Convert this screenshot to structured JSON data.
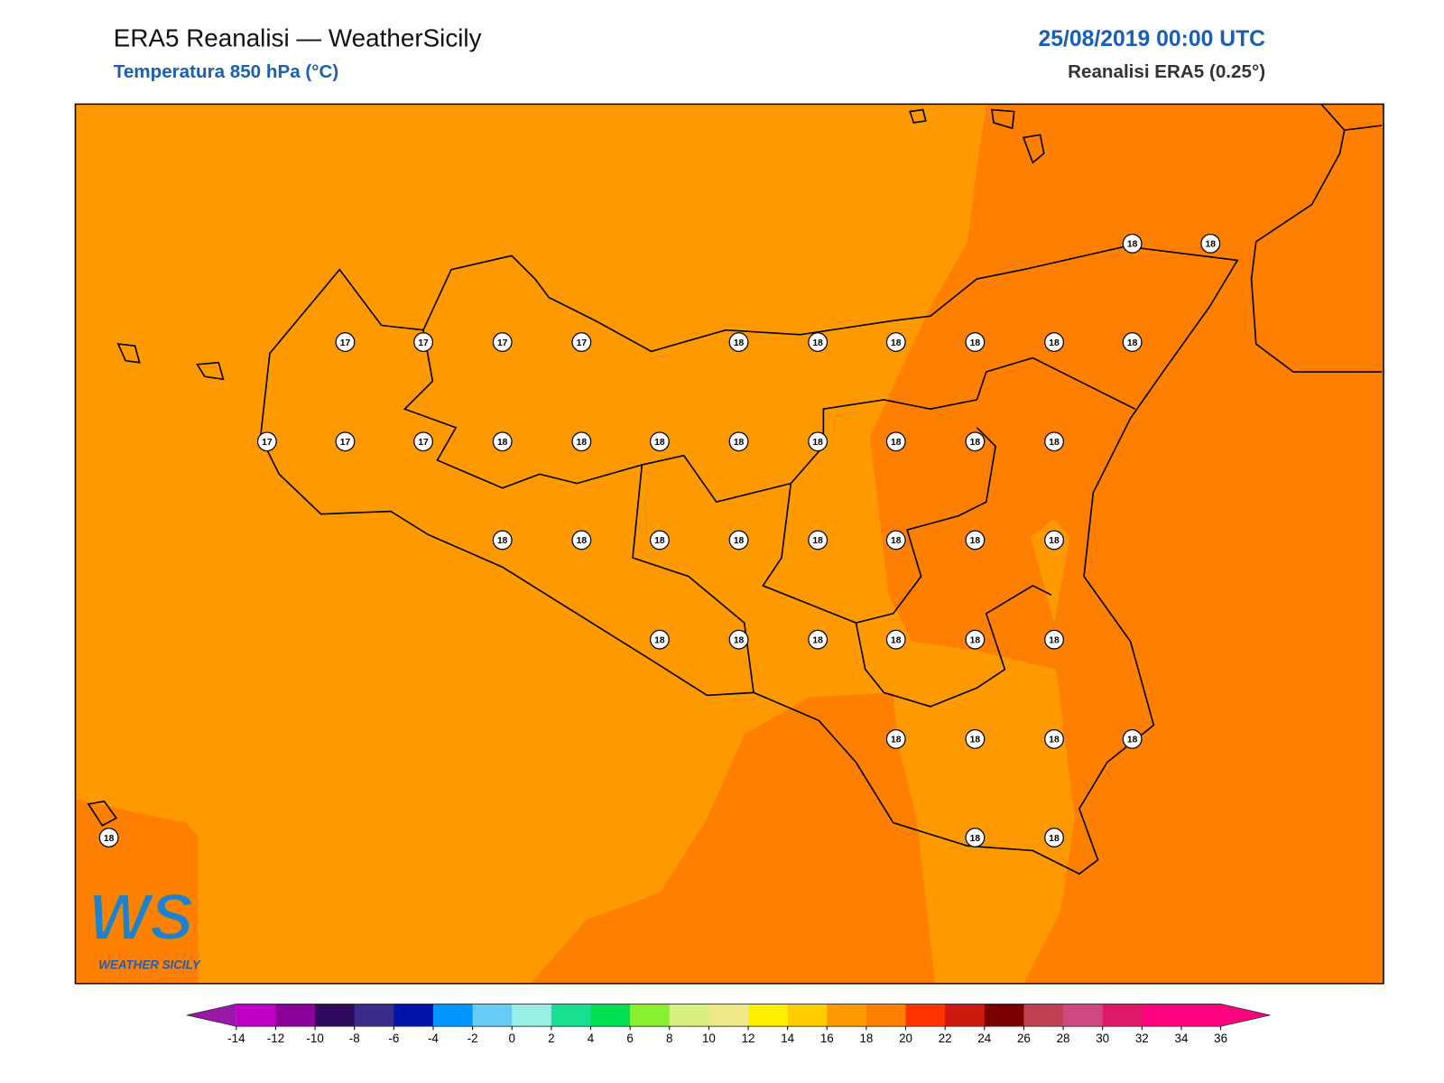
{
  "header": {
    "title": "ERA5 Reanalisi — WeatherSicily",
    "subtitle": "Temperatura 850 hPa (°C)",
    "date": "25/08/2019 00:00 UTC",
    "source": "Reanalisi ERA5 (0.25°)"
  },
  "stations": [
    18,
    18,
    17,
    17,
    17,
    17,
    18,
    18,
    18,
    18,
    18,
    18,
    17,
    17,
    17,
    18,
    18,
    18,
    18,
    18,
    18,
    18,
    18,
    18,
    18,
    18,
    18,
    18,
    18,
    18,
    18,
    18,
    18,
    18,
    18,
    18,
    18,
    18,
    18,
    18,
    18,
    18,
    18,
    18
  ],
  "logo": {
    "mark": "WS",
    "name": "WEATHER SICILY"
  },
  "colorbar": {
    "ticks": [
      -14,
      -12,
      -10,
      -8,
      -6,
      -4,
      -2,
      0,
      2,
      4,
      6,
      8,
      10,
      12,
      14,
      16,
      18,
      20,
      22,
      24,
      26,
      28,
      30,
      32,
      34,
      36
    ],
    "colors": [
      "#c000c8",
      "#8a0099",
      "#2e0a5c",
      "#3a2a8a",
      "#0014aa",
      "#0096ff",
      "#66ccf5",
      "#99eee6",
      "#19e090",
      "#00e050",
      "#88f030",
      "#d8f080",
      "#eee888",
      "#fff000",
      "#ffcc00",
      "#ff9900",
      "#ff7f00",
      "#ff3300",
      "#cc1a10",
      "#7a0000",
      "#c04050",
      "#d04880",
      "#e0186a",
      "#ff007f",
      "#ff007f"
    ],
    "under": "#9a17a8",
    "over": "#ff007f"
  }
}
